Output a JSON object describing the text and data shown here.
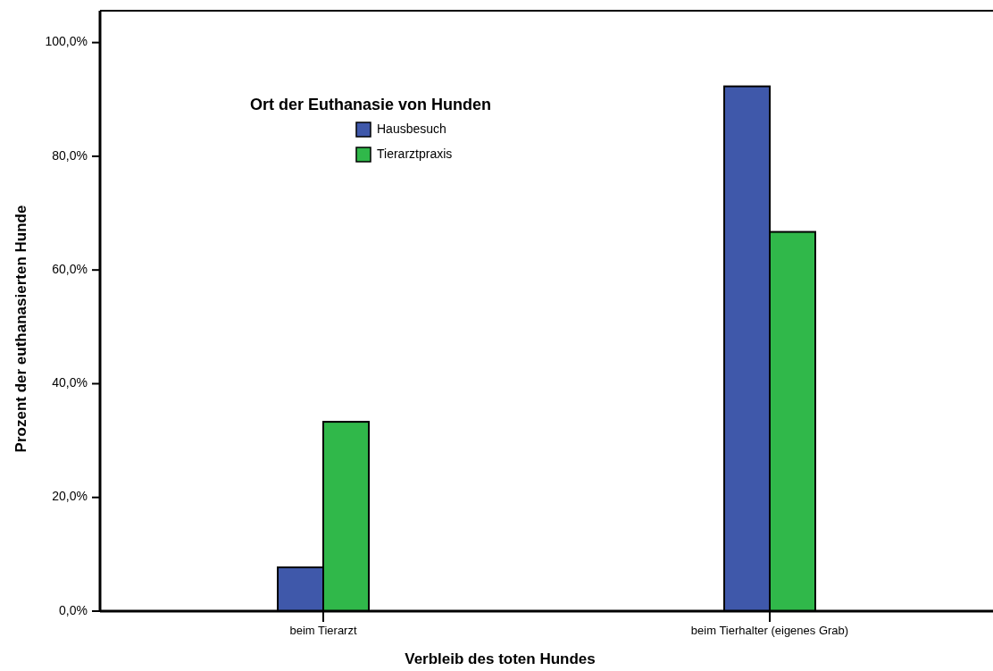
{
  "chart_data": {
    "type": "bar",
    "xlabel": "Verbleib des toten Hundes",
    "ylabel": "Prozent der euthanasierten Hunde",
    "legend_title": "Ort der Euthanasie von Hunden",
    "legend": "top left",
    "categories": [
      "beim Tierarzt",
      "beim Tierhalter (eigenes Grab)"
    ],
    "series": [
      {
        "name": "Hausbesuch",
        "color": "#3f58aa",
        "values": [
          7.7,
          92.3
        ]
      },
      {
        "name": "Tierarztpraxis",
        "color": "#30b84a",
        "values": [
          33.3,
          66.7
        ]
      }
    ],
    "ylim": [
      0,
      105.6
    ],
    "yticks": [
      {
        "value": 0,
        "label": "0,0%"
      },
      {
        "value": 20,
        "label": "20,0%"
      },
      {
        "value": 40,
        "label": "40,0%"
      },
      {
        "value": 60,
        "label": "60,0%"
      },
      {
        "value": 80,
        "label": "80,0%"
      },
      {
        "value": 100,
        "label": "100,0%"
      }
    ]
  }
}
